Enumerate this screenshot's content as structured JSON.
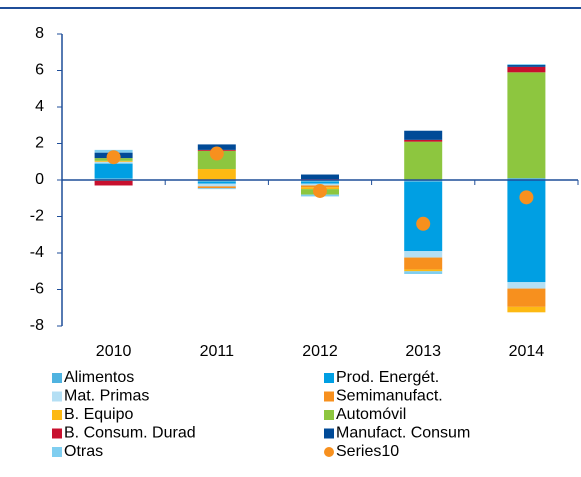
{
  "chart_data": {
    "type": "stacked_bar",
    "categories": [
      "2010",
      "2011",
      "2012",
      "2013",
      "2014"
    ],
    "series": [
      {
        "name": "Alimentos",
        "color": "#4fb3e0",
        "values": [
          0.1,
          -0.1,
          -0.1,
          -0.1,
          0.1
        ]
      },
      {
        "name": "Prod. Energét.",
        "color": "#009fe3",
        "values": [
          0.8,
          -0.1,
          -0.1,
          -3.8,
          -5.6
        ]
      },
      {
        "name": "Mat. Primas",
        "color": "#b4dff4",
        "values": [
          0.1,
          -0.15,
          -0.1,
          -0.35,
          -0.35
        ]
      },
      {
        "name": "Semimanufact.",
        "color": "#f7901e",
        "values": [
          -0.05,
          -0.1,
          -0.1,
          -0.65,
          -1.0
        ]
      },
      {
        "name": "B. Equipo",
        "color": "#fdb913",
        "values": [
          0.05,
          0.6,
          -0.1,
          -0.1,
          -0.3
        ]
      },
      {
        "name": "Automóvil",
        "color": "#8dc63f",
        "values": [
          0.15,
          1.0,
          -0.3,
          2.1,
          5.8
        ]
      },
      {
        "name": "B. Consum. Durad",
        "color": "#c8102e",
        "values": [
          -0.25,
          0.05,
          0.05,
          0.1,
          0.3
        ]
      },
      {
        "name": "Manufact. Consum",
        "color": "#004a97",
        "values": [
          0.3,
          0.3,
          0.25,
          0.5,
          0.1
        ]
      },
      {
        "name": "Otras",
        "color": "#7fcef0",
        "values": [
          0.15,
          -0.05,
          -0.1,
          -0.15,
          0.05
        ]
      },
      {
        "name": "Series10",
        "color": "#f7901e",
        "type": "scatter",
        "values": [
          1.25,
          1.45,
          -0.6,
          -2.4,
          -0.95
        ]
      }
    ],
    "ylim": [
      -8,
      8
    ],
    "yticks": [
      -8,
      -6,
      -4,
      -2,
      0,
      2,
      4,
      6,
      8
    ]
  }
}
